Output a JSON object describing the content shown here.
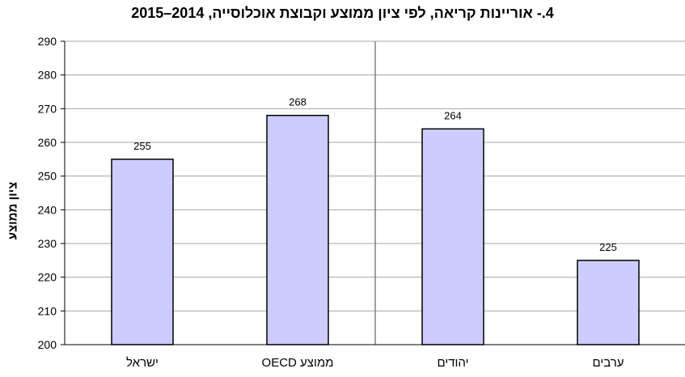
{
  "chart_data": {
    "type": "bar",
    "title": "4.- אוריינות קריאה, לפי ציון ממוצע וקבוצת אוכלוסייה, 2014–2015",
    "ylabel": "ציון ממוצע",
    "xlabel": "",
    "categories": [
      "ישראל",
      "ממוצע OECD",
      "יהודים",
      "ערבים"
    ],
    "values": [
      255,
      268,
      264,
      225
    ],
    "value_labels": [
      "255",
      "268",
      "264",
      "225"
    ],
    "ylim": [
      200,
      290
    ],
    "yticks": [
      "200",
      "210",
      "220",
      "230",
      "240",
      "250",
      "260",
      "270",
      "280",
      "290"
    ],
    "grid": true,
    "legend": "none",
    "bar_color": "#ccccff",
    "bar_edge_color": "#000000",
    "grid_color": "#a6a6a6",
    "separator_after_category": 2
  }
}
